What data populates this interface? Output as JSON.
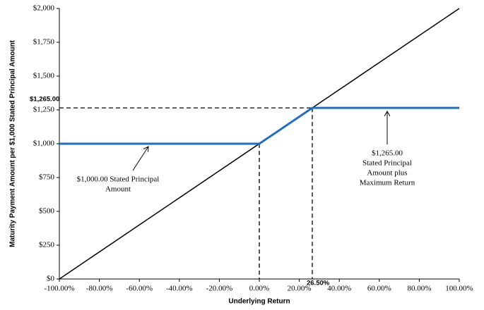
{
  "chart_data": {
    "type": "line",
    "x_label": "Underlying Return",
    "y_label": "Maturity Payment Amount per $1,000 Stated Principal Amount",
    "xlim": [
      -100,
      100
    ],
    "ylim": [
      0,
      2000
    ],
    "xticks": [
      {
        "value": -100,
        "label": "-100.00%"
      },
      {
        "value": -80,
        "label": "-80.00%"
      },
      {
        "value": -60,
        "label": "-60.00%"
      },
      {
        "value": -40,
        "label": "-40.00%"
      },
      {
        "value": -20,
        "label": "-20.00%"
      },
      {
        "value": 0,
        "label": "0.00%"
      },
      {
        "value": 20,
        "label": "20.00%"
      },
      {
        "value": 40,
        "label": "40.00%"
      },
      {
        "value": 60,
        "label": "60.00%"
      },
      {
        "value": 80,
        "label": "80.00%"
      },
      {
        "value": 100,
        "label": "100.00%"
      }
    ],
    "yticks": [
      {
        "value": 0,
        "label": "$0"
      },
      {
        "value": 250,
        "label": "$250"
      },
      {
        "value": 500,
        "label": "$500"
      },
      {
        "value": 750,
        "label": "$750"
      },
      {
        "value": 1000,
        "label": "$1,000"
      },
      {
        "value": 1250,
        "label": "$1,250"
      },
      {
        "value": 1500,
        "label": "$1,500"
      },
      {
        "value": 1750,
        "label": "$1,750"
      },
      {
        "value": 2000,
        "label": "$2,000"
      }
    ],
    "series": [
      {
        "color": "#000000",
        "x": [
          -100,
          100
        ],
        "values": [
          0,
          2000
        ]
      },
      {
        "color": "#1f6fc5",
        "x": [
          -100,
          0,
          26.5,
          100
        ],
        "values": [
          1000,
          1000,
          1265,
          1265
        ]
      }
    ],
    "reference_lines": [
      {
        "axis": "y",
        "value": 1265,
        "label": "$1,265.00"
      },
      {
        "axis": "x",
        "value": 26.5,
        "label": "26.50%"
      }
    ],
    "annotations": [
      {
        "lines": [
          "$1,000.00 Stated Principal",
          "Amount"
        ]
      },
      {
        "lines": [
          "$1,265.00",
          "Stated Principal",
          "Amount plus",
          "Maximum Return"
        ]
      }
    ]
  }
}
